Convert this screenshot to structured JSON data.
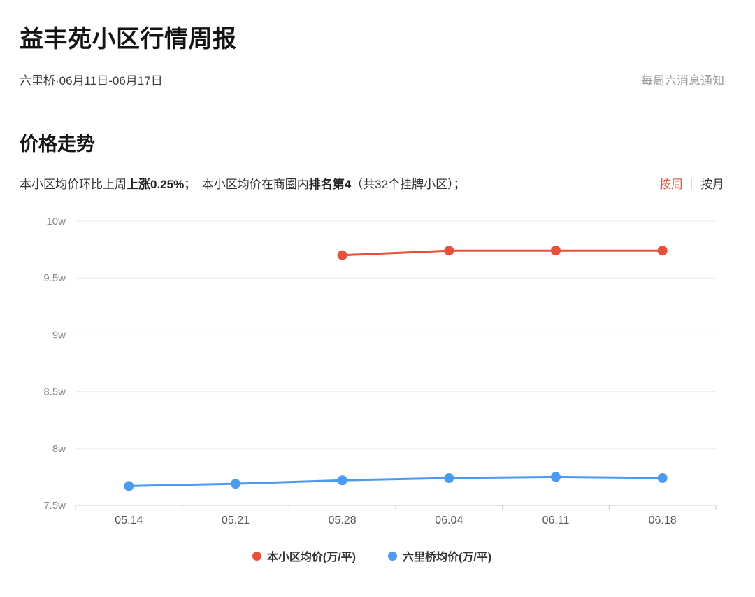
{
  "header": {
    "title": "益丰苑小区行情周报",
    "subtitle": "六里桥·06月11日-06月17日",
    "notice": "每周六消息通知"
  },
  "section": {
    "title": "价格走势",
    "desc": {
      "p1": "本小区均价环比上周",
      "b1": "上涨0.25%",
      "p2": "；　本小区均价在商圈内",
      "b2": "排名第4",
      "p3": "（共32个挂牌小区）；"
    },
    "toggle": {
      "week": "按周",
      "month": "按月"
    }
  },
  "chart_data": {
    "type": "line",
    "x": [
      "05.14",
      "05.21",
      "05.28",
      "06.04",
      "06.11",
      "06.18"
    ],
    "series": [
      {
        "name": "本小区均价(万/平)",
        "color": "#e8503c",
        "values": [
          null,
          null,
          9.7,
          9.74,
          9.74,
          9.74
        ]
      },
      {
        "name": "六里桥均价(万/平)",
        "color": "#4d9bf0",
        "values": [
          7.67,
          7.69,
          7.72,
          7.74,
          7.75,
          7.74
        ]
      }
    ],
    "ylim": [
      7.5,
      10
    ],
    "ytick_step": 0.5,
    "ytick_labels": [
      "7.5w",
      "8w",
      "8.5w",
      "9w",
      "9.5w",
      "10w"
    ],
    "grid": true,
    "legend_position": "bottom",
    "colors": {
      "grid_line": "#ededed",
      "axis_line": "#cccccc",
      "y_label": "#8a8a8a",
      "x_label": "#555555"
    }
  }
}
